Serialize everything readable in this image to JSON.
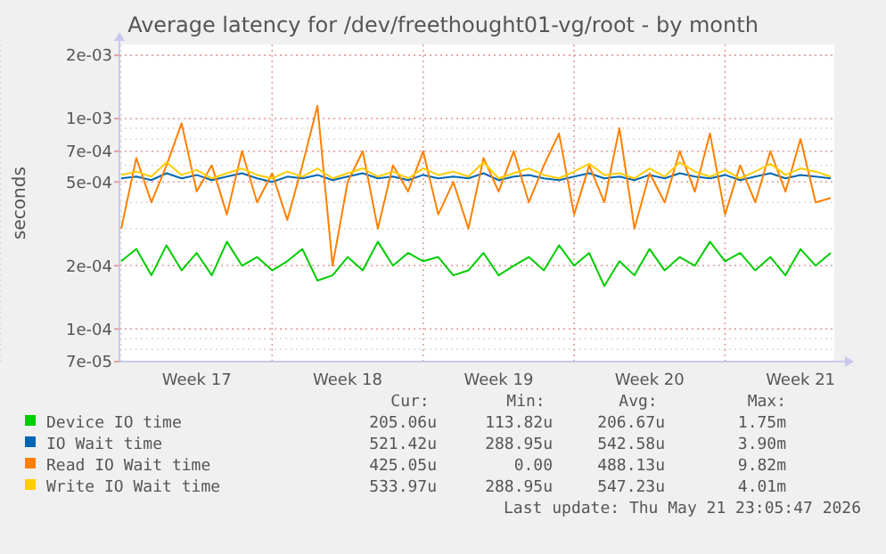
{
  "chart_data": {
    "type": "line",
    "title": "Average latency for /dev/freethought01-vg/root - by month",
    "ylabel": "seconds",
    "log": "y",
    "grid": true,
    "legend": "bottom",
    "line_style": "solid",
    "marker": "none",
    "categories": [
      null,
      null,
      null,
      null,
      null,
      "Week 17",
      null,
      null,
      null,
      null,
      null,
      null,
      null,
      null,
      null,
      "Week 18",
      null,
      null,
      null,
      null,
      null,
      null,
      null,
      null,
      null,
      "Week 19",
      null,
      null,
      null,
      null,
      null,
      null,
      null,
      null,
      null,
      "Week 20",
      null,
      null,
      null,
      null,
      null,
      null,
      null,
      null,
      null,
      "Week 21",
      null,
      null
    ],
    "ylim": [
      7e-05,
      0.00225
    ],
    "yticks": [
      {
        "value": 7e-05,
        "label": "7e-05"
      },
      {
        "value": 0.0001,
        "label": "1e-04"
      },
      {
        "value": 0.0002,
        "label": "2e-04"
      },
      {
        "value": 0.0005,
        "label": "5e-04"
      },
      {
        "value": 0.0007,
        "label": "7e-04"
      },
      {
        "value": 0.001,
        "label": "1e-03"
      },
      {
        "value": 0.002,
        "label": "2e-03"
      }
    ],
    "series": [
      {
        "name": "Device IO time",
        "color": "#00cc00",
        "values": [
          0.00021,
          0.00024,
          0.00018,
          0.00025,
          0.00019,
          0.00023,
          0.00018,
          0.00026,
          0.0002,
          0.00022,
          0.00019,
          0.00021,
          0.00024,
          0.00017,
          0.00018,
          0.00022,
          0.00019,
          0.00026,
          0.0002,
          0.00023,
          0.00021,
          0.00022,
          0.00018,
          0.00019,
          0.00023,
          0.00018,
          0.0002,
          0.00022,
          0.00019,
          0.00025,
          0.0002,
          0.00023,
          0.00016,
          0.00021,
          0.00018,
          0.00024,
          0.00019,
          0.00022,
          0.0002,
          0.00026,
          0.00021,
          0.00023,
          0.00019,
          0.00022,
          0.00018,
          0.00024,
          0.0002,
          0.00023
        ]
      },
      {
        "name": "IO Wait time",
        "color": "#0066b3",
        "values": [
          0.00052,
          0.00053,
          0.00051,
          0.00055,
          0.00052,
          0.00054,
          0.00051,
          0.00053,
          0.00055,
          0.00052,
          0.0005,
          0.00053,
          0.00052,
          0.00054,
          0.00051,
          0.00053,
          0.00055,
          0.00052,
          0.00053,
          0.00051,
          0.00054,
          0.00052,
          0.00053,
          0.00052,
          0.00055,
          0.00051,
          0.00053,
          0.00054,
          0.00052,
          0.00051,
          0.00053,
          0.00055,
          0.00052,
          0.00053,
          0.00051,
          0.00054,
          0.00052,
          0.00055,
          0.00053,
          0.00052,
          0.00054,
          0.00051,
          0.00053,
          0.00055,
          0.00052,
          0.00054,
          0.00053,
          0.00052
        ]
      },
      {
        "name": "Read IO Wait time",
        "color": "#ff8000",
        "values": [
          0.0003,
          0.00065,
          0.0004,
          0.0006,
          0.00095,
          0.00045,
          0.0006,
          0.00035,
          0.0007,
          0.0004,
          0.00055,
          0.00033,
          0.0006,
          0.00115,
          0.0002,
          0.0005,
          0.0007,
          0.0003,
          0.0006,
          0.00045,
          0.0007,
          0.00035,
          0.0005,
          0.0003,
          0.00065,
          0.00045,
          0.0007,
          0.0004,
          0.0006,
          0.00085,
          0.00035,
          0.0006,
          0.0004,
          0.0009,
          0.0003,
          0.00055,
          0.0004,
          0.0007,
          0.00045,
          0.00085,
          0.00035,
          0.0006,
          0.0004,
          0.0007,
          0.00045,
          0.0008,
          0.0004,
          0.00042
        ]
      },
      {
        "name": "Write IO Wait time",
        "color": "#ffcc00",
        "values": [
          0.00054,
          0.00056,
          0.00053,
          0.00062,
          0.00054,
          0.00057,
          0.00052,
          0.00055,
          0.00058,
          0.00054,
          0.00052,
          0.00056,
          0.00053,
          0.00058,
          0.00052,
          0.00055,
          0.00058,
          0.00053,
          0.00056,
          0.00052,
          0.00058,
          0.00054,
          0.00056,
          0.00053,
          0.00062,
          0.00052,
          0.00055,
          0.00058,
          0.00054,
          0.00052,
          0.00056,
          0.00061,
          0.00054,
          0.00055,
          0.00052,
          0.00058,
          0.00053,
          0.00062,
          0.00056,
          0.00053,
          0.00057,
          0.00052,
          0.00056,
          0.00061,
          0.00054,
          0.00058,
          0.00056,
          0.00053
        ]
      }
    ],
    "annotations": [
      "Cur:",
      "Min:",
      "Avg:",
      "Max:",
      "205.06u",
      "113.82u",
      "206.67u",
      "1.75m",
      "521.42u",
      "288.95u",
      "542.58u",
      "3.90m",
      "425.05u",
      "0.00",
      "488.13u",
      "9.82m",
      "533.97u",
      "288.95u",
      "547.23u",
      "4.01m",
      "Last update: Thu May 21 23:05:47 2026"
    ]
  }
}
